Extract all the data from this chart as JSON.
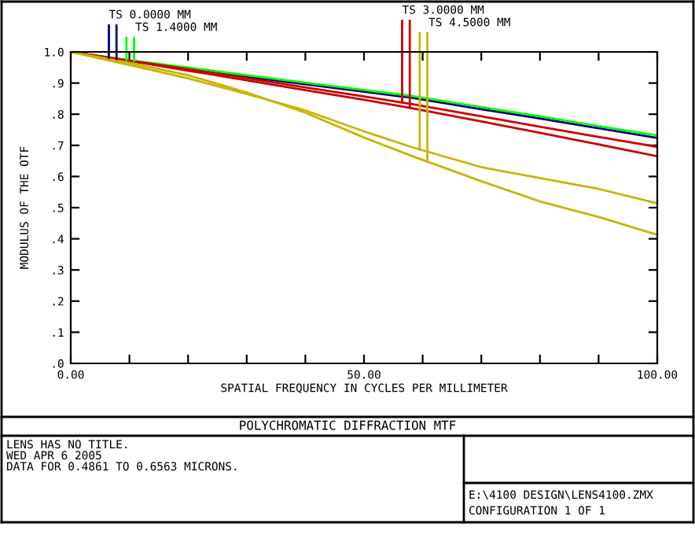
{
  "chart_data": {
    "type": "line",
    "title": "POLYCHROMATIC DIFFRACTION MTF",
    "xlabel": "SPATIAL FREQUENCY IN CYCLES PER MILLIMETER",
    "ylabel": "MODULUS OF THE OTF",
    "annotations": [
      "LENS HAS NO TITLE.",
      "WED APR 6 2005",
      "DATA FOR 0.4861 TO 0.6563 MICRONS.",
      "E:\\4100 DESIGN\\LENS4100.ZMX",
      "CONFIGURATION 1 OF 1"
    ],
    "x": [
      0,
      10,
      20,
      30,
      40,
      50,
      58,
      70,
      80,
      90,
      100
    ],
    "series": [
      {
        "name": "TS 0.0000 MM",
        "color": "#000080",
        "values": [
          1.0,
          0.971,
          0.946,
          0.92,
          0.896,
          0.872,
          0.853,
          0.816,
          0.786,
          0.755,
          0.724
        ]
      },
      {
        "name": "TS 1.4000 MM",
        "color": "#00ff00",
        "values": [
          1.0,
          0.973,
          0.95,
          0.925,
          0.901,
          0.878,
          0.859,
          0.823,
          0.793,
          0.762,
          0.732
        ]
      },
      {
        "name": "TS 3.0000 MM",
        "color": "#cc0000",
        "values": [
          1.0,
          0.972,
          0.945,
          0.916,
          0.886,
          0.857,
          0.833,
          0.793,
          0.76,
          0.727,
          0.695
        ]
      },
      {
        "color": "#cc0000",
        "values": [
          1.0,
          0.971,
          0.94,
          0.909,
          0.877,
          0.846,
          0.82,
          0.777,
          0.74,
          0.703,
          0.665
        ]
      },
      {
        "name": "TS 4.5000 MM",
        "color": "#c8b400",
        "values": [
          1.0,
          0.958,
          0.915,
          0.865,
          0.812,
          0.745,
          0.695,
          0.63,
          0.595,
          0.56,
          0.514
        ]
      },
      {
        "color": "#c8b400",
        "values": [
          1.0,
          0.965,
          0.925,
          0.87,
          0.805,
          0.725,
          0.667,
          0.585,
          0.52,
          0.47,
          0.413
        ]
      }
    ],
    "xlim": [
      0,
      100
    ],
    "ylim": [
      0,
      1.0
    ],
    "xticks": [
      {
        "value": 0,
        "label": "0.00"
      },
      {
        "value": 10,
        "label": null
      },
      {
        "value": 20,
        "label": null
      },
      {
        "value": 30,
        "label": null
      },
      {
        "value": 40,
        "label": null
      },
      {
        "value": 50,
        "label": "50.00"
      },
      {
        "value": 60,
        "label": null
      },
      {
        "value": 70,
        "label": null
      },
      {
        "value": 80,
        "label": null
      },
      {
        "value": 90,
        "label": null
      },
      {
        "value": 100,
        "label": "100.00"
      }
    ],
    "yticks": [
      {
        "value": 0,
        "label": ".0"
      },
      {
        "value": 0.1,
        "label": ".1"
      },
      {
        "value": 0.2,
        "label": ".2"
      },
      {
        "value": 0.3,
        "label": ".3"
      },
      {
        "value": 0.4,
        "label": ".4"
      },
      {
        "value": 0.5,
        "label": ".5"
      },
      {
        "value": 0.6,
        "label": ".6"
      },
      {
        "value": 0.7,
        "label": ".7"
      },
      {
        "value": 0.8,
        "label": ".8"
      },
      {
        "value": 0.9,
        "label": ".9"
      },
      {
        "value": 1.0,
        "label": "1.0"
      }
    ],
    "legend": "top",
    "grid": false,
    "marker": "none",
    "line_style": "solid"
  }
}
